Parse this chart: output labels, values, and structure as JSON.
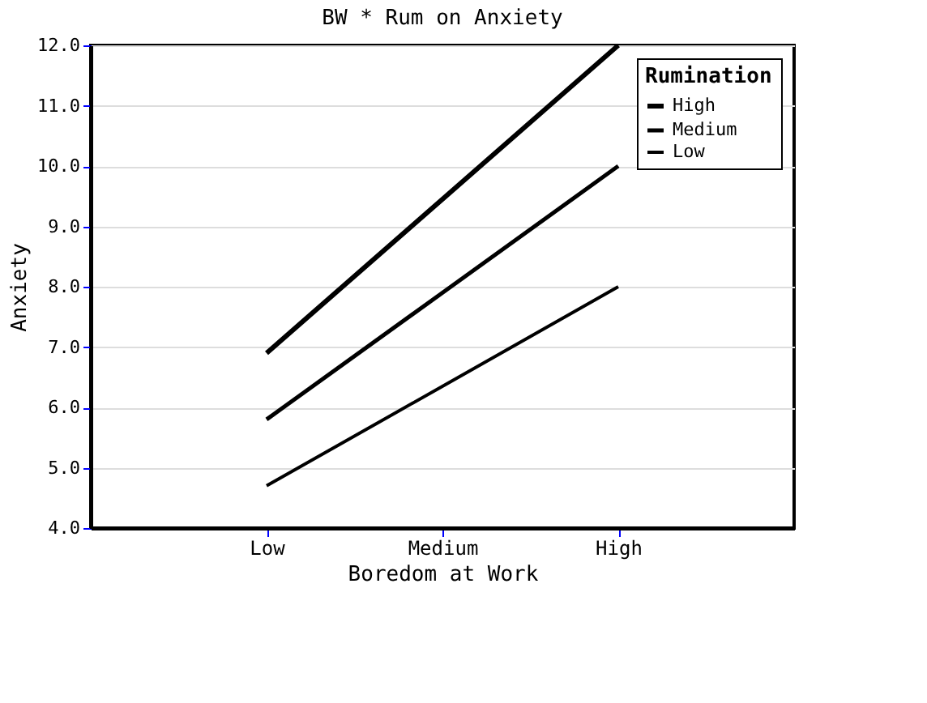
{
  "chart_data": {
    "type": "line",
    "title": "BW * Rum on Anxiety",
    "xlabel": "Boredom at Work",
    "ylabel": "Anxiety",
    "legend_title": "Rumination",
    "categories": [
      "Low",
      "Medium",
      "High"
    ],
    "series": [
      {
        "name": "High",
        "color": "#000000",
        "values": [
          6.9,
          9.45,
          12.0
        ]
      },
      {
        "name": "Medium",
        "color": "#000000",
        "values": [
          5.8,
          7.9,
          10.0
        ]
      },
      {
        "name": "Low",
        "color": "#000000",
        "values": [
          4.7,
          6.35,
          8.0
        ]
      }
    ],
    "ylim": [
      4.0,
      12.0
    ],
    "yticks": [
      {
        "value": 4,
        "label": "4.0"
      },
      {
        "value": 5,
        "label": "5.0"
      },
      {
        "value": 6,
        "label": "6.0"
      },
      {
        "value": 7,
        "label": "7.0"
      },
      {
        "value": 8,
        "label": "8.0"
      },
      {
        "value": 9,
        "label": "9.0"
      },
      {
        "value": 10,
        "label": "10.0"
      },
      {
        "value": 11,
        "label": "11.0"
      },
      {
        "value": 12,
        "label": "12.0"
      }
    ],
    "grid": "y",
    "legend": "top right",
    "marker": "none",
    "line_style": "solid"
  }
}
